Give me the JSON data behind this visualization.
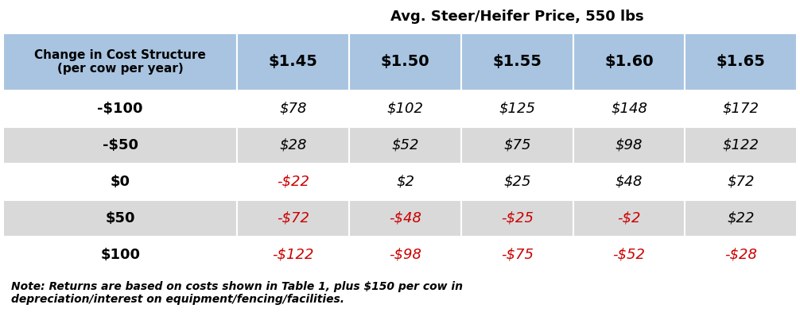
{
  "super_header": "Avg. Steer/Heifer Price, 550 lbs",
  "col_header_left": "Change in Cost Structure\n(per cow per year)",
  "col_headers": [
    "$1.45",
    "$1.50",
    "$1.55",
    "$1.60",
    "$1.65"
  ],
  "row_labels": [
    "-$100",
    "-$50",
    "$0",
    "$50",
    "$100"
  ],
  "table_data": [
    [
      "$78",
      "$102",
      "$125",
      "$148",
      "$172"
    ],
    [
      "$28",
      "$52",
      "$75",
      "$98",
      "$122"
    ],
    [
      "-$22",
      "$2",
      "$25",
      "$48",
      "$72"
    ],
    [
      "-$72",
      "-$48",
      "-$25",
      "-$2",
      "$22"
    ],
    [
      "-$122",
      "-$98",
      "-$75",
      "-$52",
      "-$28"
    ]
  ],
  "note": "Note: Returns are based on costs shown in Table 1, plus $150 per cow in\ndepreciation/interest on equipment/fencing/facilities.",
  "header_bg": "#a8c4e0",
  "alt_row_bg": "#d9d9d9",
  "white_row_bg": "#ffffff",
  "negative_color": "#cc0000",
  "positive_color": "#000000",
  "header_text_color": "#000000"
}
